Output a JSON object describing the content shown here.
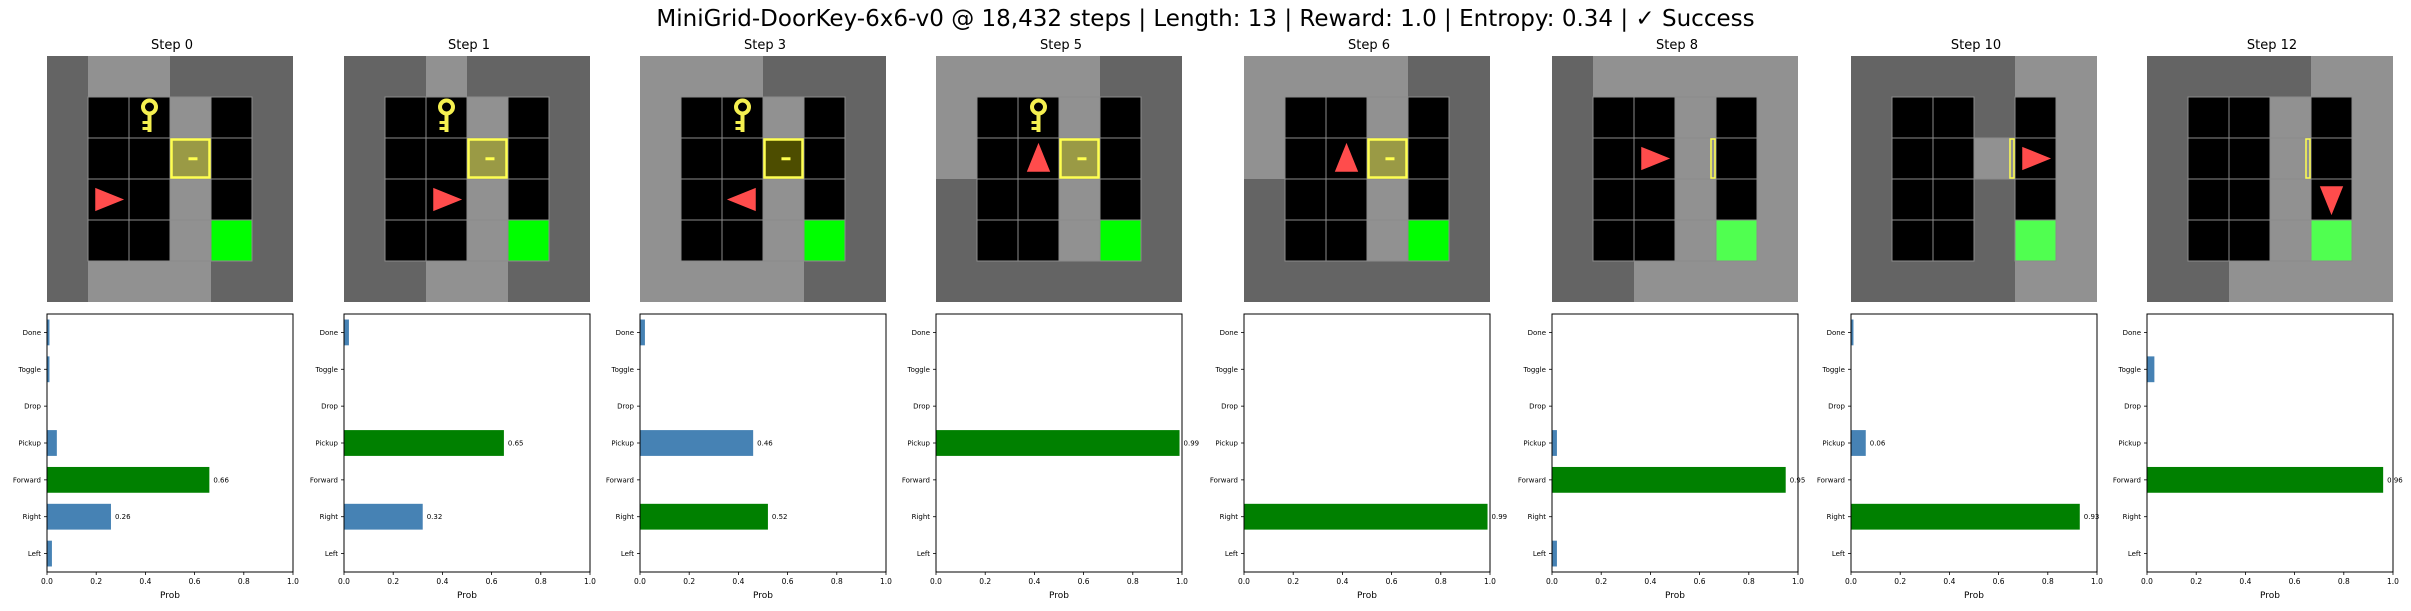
{
  "suptitle": "MiniGrid-DoorKey-6x6-v0 @ 18,432 steps | Length: 13 | Reward: 1.0 | Entropy: 0.34 | ✓ Success",
  "colors": {
    "wall": "#646464",
    "floor_lit": "#919191",
    "floor_dark": "#000000",
    "unseen_dark": "#4a4a4a",
    "gridline": "#8c8c8c",
    "agent": "#ff4c4c",
    "key": "#f5f050",
    "door_fill": "#9a9a45",
    "door_fill_dark": "#4d4d00",
    "door_edge": "#ffff50",
    "goal": "#00ff00",
    "goal_lit": "#50ff50",
    "bar_default": "#4682b4",
    "bar_max": "#008000"
  },
  "chart_data": [
    {
      "type": "bar",
      "title": "Step 0",
      "categories": [
        "Left",
        "Right",
        "Forward",
        "Pickup",
        "Drop",
        "Toggle",
        "Done"
      ],
      "values": [
        0.02,
        0.26,
        0.66,
        0.04,
        0.0,
        0.01,
        0.01
      ],
      "labels": [
        null,
        "0.26",
        "0.66",
        null,
        null,
        null,
        null
      ],
      "xlabel": "Prob",
      "xlim": [
        0,
        1
      ],
      "xticks": [
        "0.0",
        "0.2",
        "0.4",
        "0.6",
        "0.8",
        "1.0"
      ]
    },
    {
      "type": "bar",
      "title": "Step 1",
      "categories": [
        "Left",
        "Right",
        "Forward",
        "Pickup",
        "Drop",
        "Toggle",
        "Done"
      ],
      "values": [
        0.0,
        0.32,
        0.0,
        0.65,
        0.0,
        0.0,
        0.02
      ],
      "labels": [
        null,
        "0.32",
        null,
        "0.65",
        null,
        null,
        null
      ],
      "xlabel": "Prob",
      "xlim": [
        0,
        1
      ],
      "xticks": [
        "0.0",
        "0.2",
        "0.4",
        "0.6",
        "0.8",
        "1.0"
      ]
    },
    {
      "type": "bar",
      "title": "Step 3",
      "categories": [
        "Left",
        "Right",
        "Forward",
        "Pickup",
        "Drop",
        "Toggle",
        "Done"
      ],
      "values": [
        0.0,
        0.52,
        0.0,
        0.46,
        0.0,
        0.0,
        0.02
      ],
      "labels": [
        null,
        "0.52",
        null,
        "0.46",
        null,
        null,
        null
      ],
      "xlabel": "Prob",
      "xlim": [
        0,
        1
      ],
      "xticks": [
        "0.0",
        "0.2",
        "0.4",
        "0.6",
        "0.8",
        "1.0"
      ]
    },
    {
      "type": "bar",
      "title": "Step 5",
      "categories": [
        "Left",
        "Right",
        "Forward",
        "Pickup",
        "Drop",
        "Toggle",
        "Done"
      ],
      "values": [
        0.0,
        0.0,
        0.0,
        0.99,
        0.0,
        0.0,
        0.0
      ],
      "labels": [
        null,
        null,
        null,
        "0.99",
        null,
        null,
        null
      ],
      "xlabel": "Prob",
      "xlim": [
        0,
        1
      ],
      "xticks": [
        "0.0",
        "0.2",
        "0.4",
        "0.6",
        "0.8",
        "1.0"
      ]
    },
    {
      "type": "bar",
      "title": "Step 6",
      "categories": [
        "Left",
        "Right",
        "Forward",
        "Pickup",
        "Drop",
        "Toggle",
        "Done"
      ],
      "values": [
        0.0,
        0.99,
        0.0,
        0.0,
        0.0,
        0.0,
        0.0
      ],
      "labels": [
        null,
        "0.99",
        null,
        null,
        null,
        null,
        null
      ],
      "xlabel": "Prob",
      "xlim": [
        0,
        1
      ],
      "xticks": [
        "0.0",
        "0.2",
        "0.4",
        "0.6",
        "0.8",
        "1.0"
      ]
    },
    {
      "type": "bar",
      "title": "Step 8",
      "categories": [
        "Left",
        "Right",
        "Forward",
        "Pickup",
        "Drop",
        "Toggle",
        "Done"
      ],
      "values": [
        0.02,
        0.0,
        0.95,
        0.02,
        0.0,
        0.0,
        0.0
      ],
      "labels": [
        null,
        null,
        "0.95",
        null,
        null,
        null,
        null
      ],
      "xlabel": "Prob",
      "xlim": [
        0,
        1
      ],
      "xticks": [
        "0.0",
        "0.2",
        "0.4",
        "0.6",
        "0.8",
        "1.0"
      ]
    },
    {
      "type": "bar",
      "title": "Step 10",
      "categories": [
        "Left",
        "Right",
        "Forward",
        "Pickup",
        "Drop",
        "Toggle",
        "Done"
      ],
      "values": [
        0.0,
        0.93,
        0.0,
        0.06,
        0.0,
        0.0,
        0.01
      ],
      "labels": [
        null,
        "0.93",
        null,
        "0.06",
        null,
        null,
        null
      ],
      "xlabel": "Prob",
      "xlim": [
        0,
        1
      ],
      "xticks": [
        "0.0",
        "0.2",
        "0.4",
        "0.6",
        "0.8",
        "1.0"
      ]
    },
    {
      "type": "bar",
      "title": "Step 12",
      "categories": [
        "Left",
        "Right",
        "Forward",
        "Pickup",
        "Drop",
        "Toggle",
        "Done"
      ],
      "values": [
        0.0,
        0.0,
        0.96,
        0.0,
        0.0,
        0.03,
        0.0
      ],
      "labels": [
        null,
        null,
        "0.96",
        null,
        null,
        null,
        null
      ],
      "xlabel": "Prob",
      "xlim": [
        0,
        1
      ],
      "xticks": [
        "0.0",
        "0.2",
        "0.4",
        "0.6",
        "0.8",
        "1.0"
      ]
    }
  ],
  "grids": [
    {
      "cells": [
        [
          "wall",
          "floor_lit",
          "floor_lit",
          "wall",
          "wall",
          "wall"
        ],
        [
          "wall",
          "floor_dark",
          "floor_dark",
          "floor_lit",
          "floor_dark",
          "wall"
        ],
        [
          "wall",
          "floor_dark",
          "floor_dark",
          "door",
          "floor_dark",
          "wall"
        ],
        [
          "wall",
          "floor_dark",
          "floor_dark",
          "floor_lit",
          "floor_dark",
          "wall"
        ],
        [
          "wall",
          "floor_dark",
          "floor_dark",
          "floor_lit",
          "goal",
          "wall"
        ],
        [
          "wall",
          "floor_lit",
          "floor_lit",
          "floor_lit",
          "wall",
          "wall"
        ]
      ],
      "agent": {
        "row": 3,
        "col": 1,
        "dir": "right"
      },
      "key": {
        "row": 1,
        "col": 2
      }
    },
    {
      "cells": [
        [
          "wall",
          "wall",
          "floor_lit",
          "wall",
          "wall",
          "wall"
        ],
        [
          "wall",
          "floor_dark",
          "floor_dark",
          "floor_lit",
          "floor_dark",
          "wall"
        ],
        [
          "wall",
          "floor_dark",
          "floor_dark",
          "door",
          "floor_dark",
          "wall"
        ],
        [
          "wall",
          "floor_dark",
          "floor_dark",
          "floor_lit",
          "floor_dark",
          "wall"
        ],
        [
          "wall",
          "floor_dark",
          "floor_dark",
          "floor_lit",
          "goal",
          "wall"
        ],
        [
          "wall",
          "wall",
          "floor_lit",
          "floor_lit",
          "wall",
          "wall"
        ]
      ],
      "agent": {
        "row": 3,
        "col": 2,
        "dir": "right"
      },
      "key": {
        "row": 1,
        "col": 2
      }
    },
    {
      "cells": [
        [
          "floor_lit",
          "floor_lit",
          "floor_lit",
          "wall",
          "wall",
          "wall"
        ],
        [
          "floor_lit",
          "floor_dark",
          "floor_dark",
          "floor_lit",
          "floor_dark",
          "wall"
        ],
        [
          "floor_lit",
          "floor_dark",
          "floor_dark",
          "door_dark",
          "floor_dark",
          "wall"
        ],
        [
          "floor_lit",
          "floor_dark",
          "floor_dark",
          "floor_lit",
          "floor_dark",
          "wall"
        ],
        [
          "floor_lit",
          "floor_dark",
          "floor_dark",
          "floor_lit",
          "goal",
          "wall"
        ],
        [
          "floor_lit",
          "floor_lit",
          "floor_lit",
          "floor_lit",
          "wall",
          "wall"
        ]
      ],
      "agent": {
        "row": 3,
        "col": 2,
        "dir": "left"
      },
      "key": {
        "row": 1,
        "col": 2
      }
    },
    {
      "cells": [
        [
          "floor_lit",
          "floor_lit",
          "floor_lit",
          "floor_lit",
          "wall",
          "wall"
        ],
        [
          "floor_lit",
          "floor_dark",
          "floor_dark",
          "floor_lit",
          "floor_dark",
          "wall"
        ],
        [
          "floor_lit",
          "floor_dark",
          "floor_dark",
          "door",
          "floor_dark",
          "wall"
        ],
        [
          "wall",
          "floor_dark",
          "floor_dark",
          "floor_lit",
          "floor_dark",
          "wall"
        ],
        [
          "wall",
          "floor_dark",
          "floor_dark",
          "floor_lit",
          "goal",
          "wall"
        ],
        [
          "wall",
          "wall",
          "wall",
          "wall",
          "wall",
          "wall"
        ]
      ],
      "agent": {
        "row": 2,
        "col": 2,
        "dir": "up"
      },
      "key": {
        "row": 1,
        "col": 2
      }
    },
    {
      "cells": [
        [
          "floor_lit",
          "floor_lit",
          "floor_lit",
          "floor_lit",
          "wall",
          "wall"
        ],
        [
          "floor_lit",
          "floor_dark",
          "floor_dark",
          "floor_lit",
          "floor_dark",
          "wall"
        ],
        [
          "floor_lit",
          "floor_dark",
          "floor_dark",
          "door",
          "floor_dark",
          "wall"
        ],
        [
          "wall",
          "floor_dark",
          "floor_dark",
          "floor_lit",
          "floor_dark",
          "wall"
        ],
        [
          "wall",
          "floor_dark",
          "floor_dark",
          "floor_lit",
          "goal",
          "wall"
        ],
        [
          "wall",
          "wall",
          "wall",
          "wall",
          "wall",
          "wall"
        ]
      ],
      "agent": {
        "row": 2,
        "col": 2,
        "dir": "up"
      },
      "key": null
    },
    {
      "cells": [
        [
          "wall",
          "floor_lit",
          "floor_lit",
          "floor_lit",
          "floor_lit",
          "floor_lit"
        ],
        [
          "wall",
          "floor_dark",
          "floor_dark",
          "floor_lit",
          "floor_dark",
          "floor_lit"
        ],
        [
          "wall",
          "floor_dark",
          "floor_dark",
          "door_open",
          "floor_dark",
          "floor_lit"
        ],
        [
          "wall",
          "floor_dark",
          "floor_dark",
          "floor_lit",
          "floor_dark",
          "floor_lit"
        ],
        [
          "wall",
          "floor_dark",
          "floor_dark",
          "floor_lit",
          "goal_lit",
          "floor_lit"
        ],
        [
          "wall",
          "wall",
          "floor_lit",
          "floor_lit",
          "floor_lit",
          "floor_lit"
        ]
      ],
      "agent": {
        "row": 2,
        "col": 2,
        "dir": "right"
      },
      "key": null
    },
    {
      "cells": [
        [
          "wall",
          "wall",
          "wall",
          "wall",
          "floor_lit",
          "floor_lit"
        ],
        [
          "wall",
          "floor_dark",
          "floor_dark",
          "wall",
          "floor_dark",
          "floor_lit"
        ],
        [
          "wall",
          "floor_dark",
          "floor_dark",
          "door_open",
          "floor_dark",
          "floor_lit"
        ],
        [
          "wall",
          "floor_dark",
          "floor_dark",
          "wall",
          "floor_dark",
          "floor_lit"
        ],
        [
          "wall",
          "floor_dark",
          "floor_dark",
          "wall",
          "goal_lit",
          "floor_lit"
        ],
        [
          "wall",
          "wall",
          "wall",
          "wall",
          "floor_lit",
          "floor_lit"
        ]
      ],
      "agent": {
        "row": 2,
        "col": 4,
        "dir": "right"
      },
      "key": null
    },
    {
      "cells": [
        [
          "wall",
          "wall",
          "wall",
          "wall",
          "floor_lit",
          "floor_lit"
        ],
        [
          "wall",
          "floor_dark",
          "floor_dark",
          "floor_lit",
          "floor_dark",
          "floor_lit"
        ],
        [
          "wall",
          "floor_dark",
          "floor_dark",
          "door_open",
          "floor_dark",
          "floor_lit"
        ],
        [
          "wall",
          "floor_dark",
          "floor_dark",
          "floor_lit",
          "floor_dark",
          "floor_lit"
        ],
        [
          "wall",
          "floor_dark",
          "floor_dark",
          "floor_lit",
          "goal_lit",
          "floor_lit"
        ],
        [
          "wall",
          "wall",
          "floor_lit",
          "floor_lit",
          "floor_lit",
          "floor_lit"
        ]
      ],
      "agent": {
        "row": 3,
        "col": 4,
        "dir": "down"
      },
      "key": null
    }
  ]
}
